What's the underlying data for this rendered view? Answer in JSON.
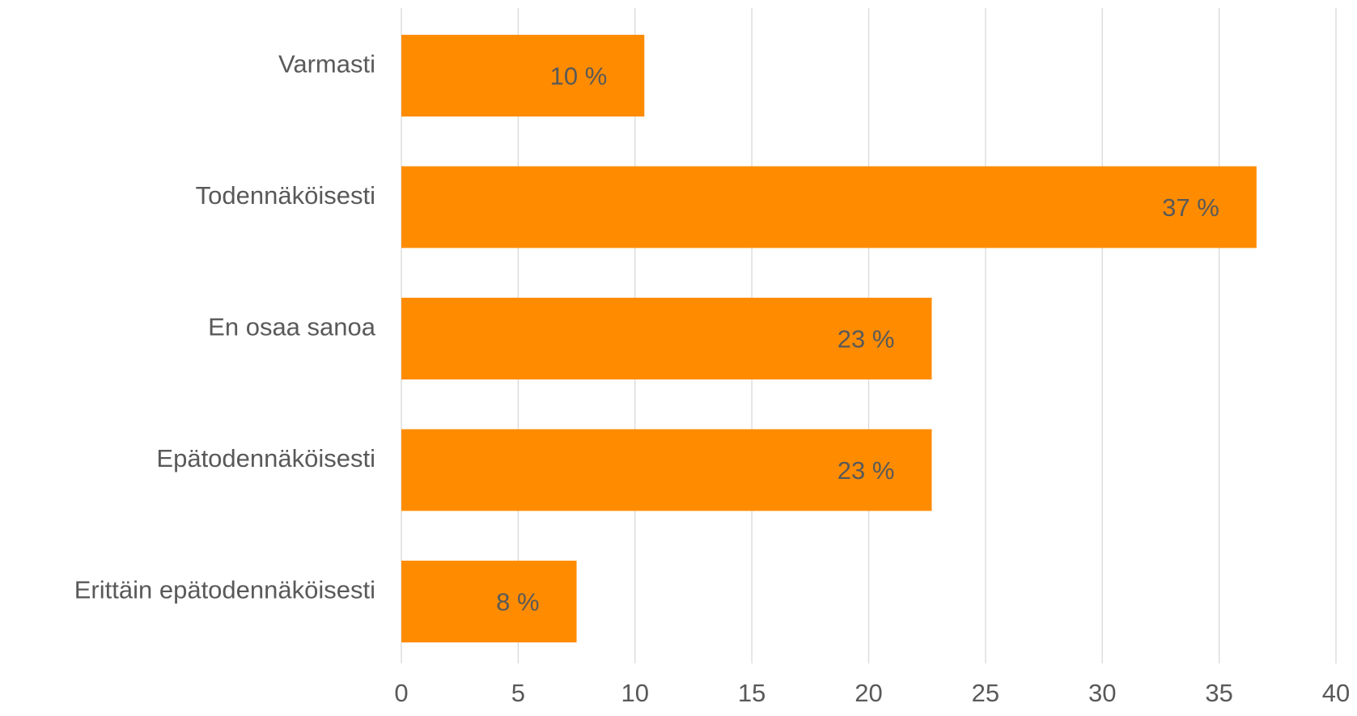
{
  "chart_data": {
    "type": "bar",
    "orientation": "horizontal",
    "categories": [
      "Varmasti",
      "Todennäköisesti",
      "En osaa sanoa",
      "Epätodennäköisesti",
      "Erittäin epätodennäköisesti"
    ],
    "values": [
      10.4,
      36.6,
      22.7,
      22.7,
      7.5
    ],
    "data_labels": [
      "10 %",
      "37 %",
      "23 %",
      "23 %",
      "8 %"
    ],
    "xlim": [
      0,
      40
    ],
    "xticks": [
      0,
      5,
      10,
      15,
      20,
      25,
      30,
      35,
      40
    ],
    "title": "",
    "xlabel": "",
    "ylabel": "",
    "grid": "vertical",
    "legend": "none",
    "bar_color": "#ff8c00",
    "text_color": "#595959",
    "grid_color": "#d9d9d9"
  }
}
